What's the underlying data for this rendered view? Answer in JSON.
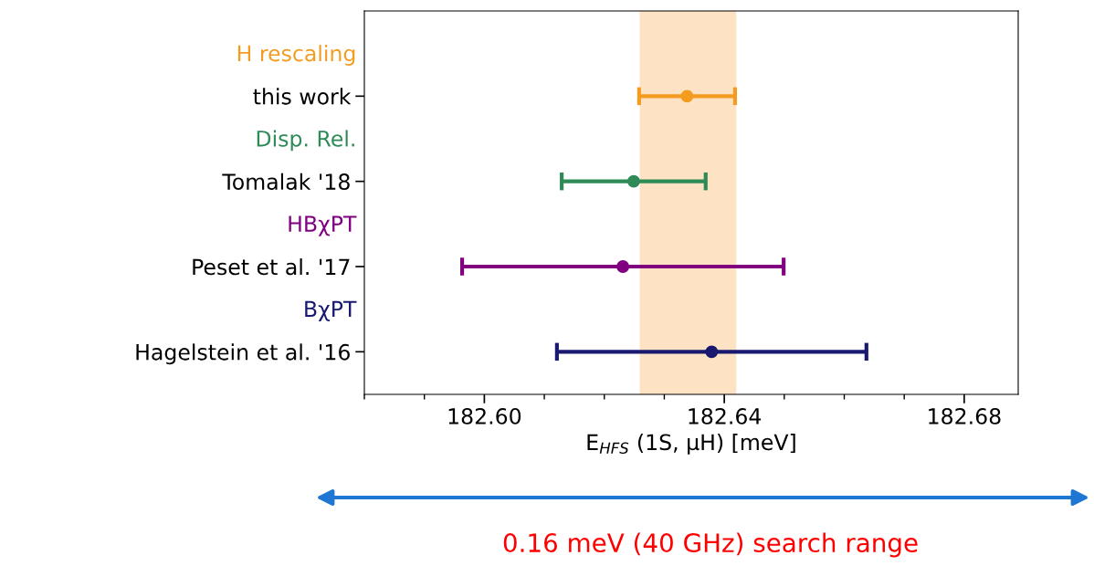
{
  "chart_data": {
    "type": "scatter",
    "orientation": "horizontal",
    "categories": [
      "this work",
      "Tomalak '18",
      "Peset et al. '17",
      "Hagelstein et al. '16"
    ],
    "series": [
      {
        "name": "H rescaling",
        "color": "#f39c1f",
        "values": [
          182.6338,
          null,
          null,
          null
        ],
        "errors": [
          0.008,
          null,
          null,
          null
        ]
      },
      {
        "name": "Disp. Rel.",
        "color": "#2e8b57",
        "values": [
          null,
          182.6249,
          null,
          null
        ],
        "errors": [
          null,
          0.012,
          null,
          null
        ]
      },
      {
        "name": "HBχPT",
        "color": "#800080",
        "values": [
          null,
          null,
          182.6231,
          null
        ],
        "errors": [
          null,
          null,
          0.0268,
          null
        ]
      },
      {
        "name": "BχPT",
        "color": "#191970",
        "values": [
          null,
          null,
          null,
          182.6379
        ],
        "errors": [
          null,
          null,
          null,
          0.0258
        ]
      }
    ],
    "marker": "circle",
    "xlim": [
      182.58,
      182.689
    ],
    "xticks": [
      {
        "value": 182.58,
        "label": null
      },
      {
        "value": 182.59,
        "label": null
      },
      {
        "value": 182.6,
        "label": "182.60"
      },
      {
        "value": 182.61,
        "label": null
      },
      {
        "value": 182.62,
        "label": null
      },
      {
        "value": 182.63,
        "label": null
      },
      {
        "value": 182.64,
        "label": "182.64"
      },
      {
        "value": 182.65,
        "label": null
      },
      {
        "value": 182.66,
        "label": null
      },
      {
        "value": 182.67,
        "label": null
      },
      {
        "value": 182.68,
        "label": "182.68"
      }
    ],
    "xlabel": "E$_{HFS}$ (1S, μH) [meV]",
    "bands": [
      {
        "axis": "x",
        "from": 182.6259,
        "to": 182.642,
        "label": null,
        "color": "#fde3c4"
      }
    ],
    "annotations": [
      "0.16 meV (40 GHz) search range"
    ],
    "grid": false,
    "legend": false
  }
}
